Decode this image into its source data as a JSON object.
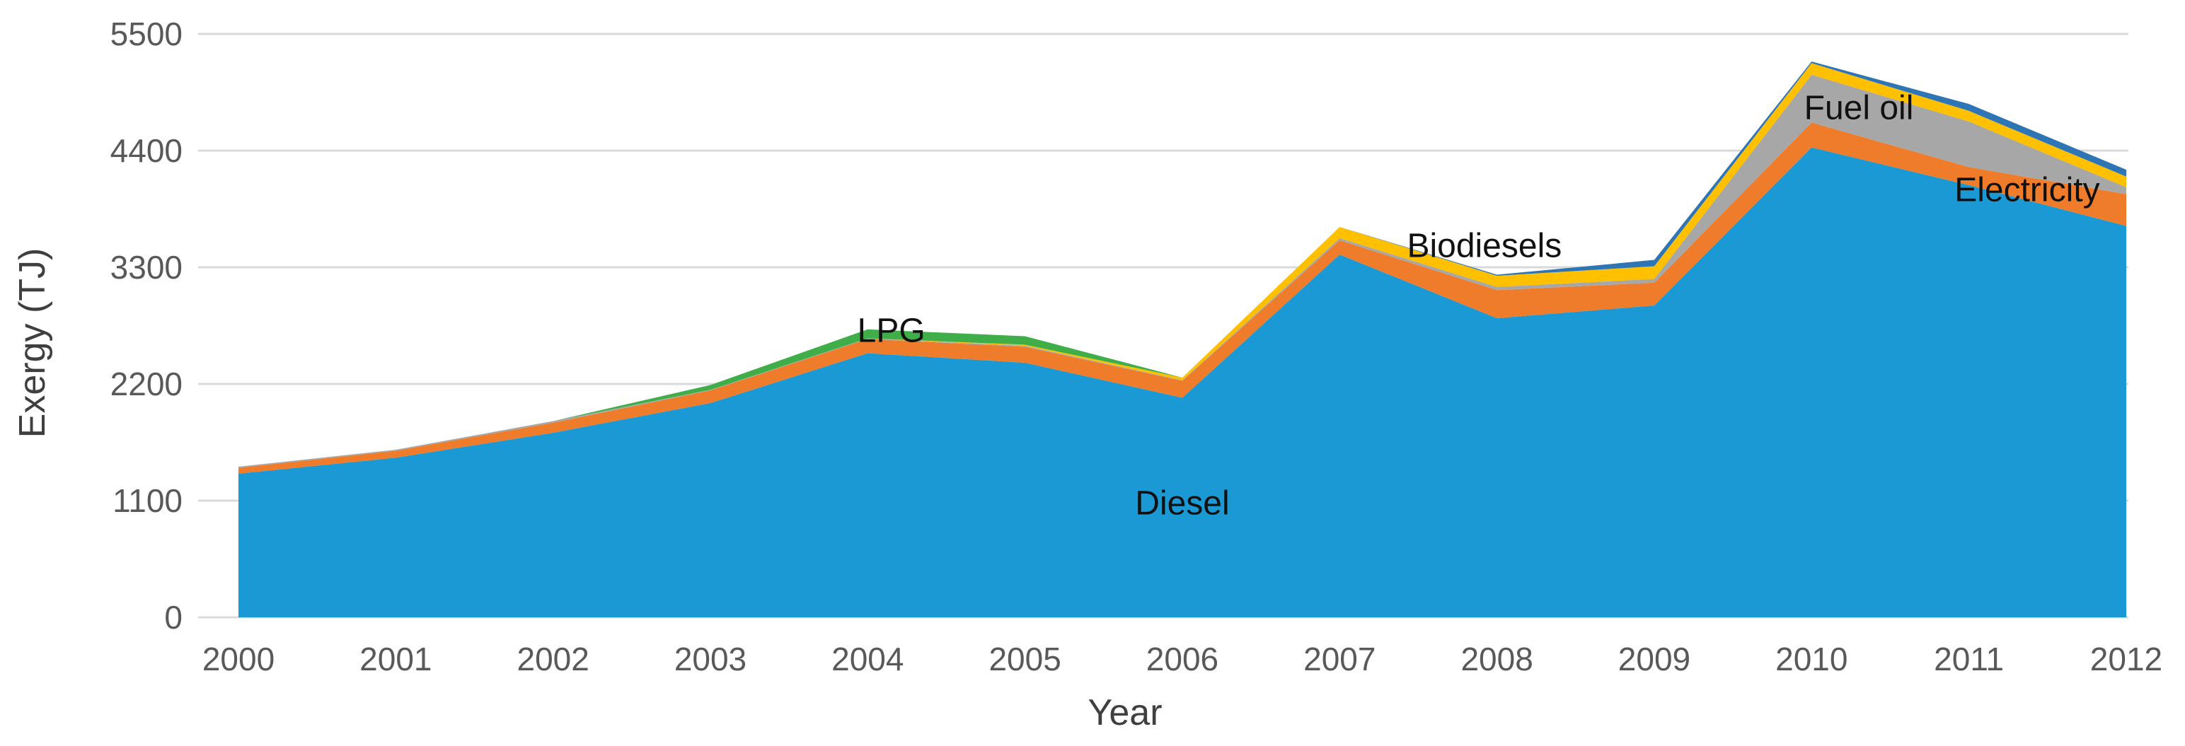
{
  "chart_data": {
    "type": "area",
    "stacked": true,
    "title": "",
    "xlabel": "Year",
    "ylabel": "Exergy (TJ)",
    "grid": true,
    "legend_position": "none",
    "x": [
      2000,
      2001,
      2002,
      2003,
      2004,
      2005,
      2006,
      2007,
      2008,
      2009,
      2010,
      2011,
      2012
    ],
    "x_tick_labels": [
      "2000",
      "2001",
      "2002",
      "2003",
      "2004",
      "2005",
      "2006",
      "2007",
      "2008",
      "2009",
      "2010",
      "2011",
      "2012"
    ],
    "y_ticks": [
      0,
      1100,
      2200,
      3300,
      4400,
      5500
    ],
    "y_tick_labels": [
      "0",
      "1100",
      "2200",
      "3300",
      "4400",
      "5500"
    ],
    "ylim": [
      0,
      5500
    ],
    "series": [
      {
        "name": "Diesel",
        "color": "#1B99D5",
        "values": [
          1355,
          1505,
          1740,
          2020,
          2490,
          2400,
          2070,
          3420,
          2820,
          2940,
          4430,
          4075,
          3690
        ]
      },
      {
        "name": "Electricity",
        "color": "#EE7C2B",
        "values": [
          55,
          65,
          95,
          120,
          135,
          150,
          160,
          135,
          265,
          215,
          235,
          170,
          300
        ]
      },
      {
        "name": "Fuel oil",
        "color": "#A7A7A7",
        "values": [
          10,
          10,
          15,
          5,
          5,
          10,
          5,
          20,
          30,
          35,
          450,
          430,
          65
        ]
      },
      {
        "name": "Biodiesels",
        "color": "#FFC000",
        "values": [
          0,
          0,
          0,
          0,
          0,
          10,
          25,
          105,
          105,
          120,
          110,
          100,
          100
        ]
      },
      {
        "name": "",
        "color": "#2E75B6",
        "values": [
          0,
          0,
          0,
          0,
          0,
          0,
          0,
          0,
          10,
          60,
          15,
          65,
          65
        ]
      },
      {
        "name": "LPG",
        "color": "#3FAE49",
        "values": [
          0,
          0,
          0,
          45,
          85,
          80,
          0,
          0,
          0,
          0,
          0,
          0,
          0
        ]
      }
    ],
    "annotations": [
      {
        "text": "LPG",
        "x": 2004.15,
        "y": 2700
      },
      {
        "text": "Diesel",
        "x": 2006.0,
        "y": 1075
      },
      {
        "text": "Biodiesels",
        "x": 2007.92,
        "y": 3500
      },
      {
        "text": "Fuel oil",
        "x": 2010.3,
        "y": 4800
      },
      {
        "text": "Electricity",
        "x": 2011.37,
        "y": 4030
      }
    ],
    "colors": {
      "gridline": "#D9D9D9",
      "tick_text": "#595959",
      "axis_title_text": "#3f3f3f",
      "annotation_text": "#111111"
    }
  }
}
